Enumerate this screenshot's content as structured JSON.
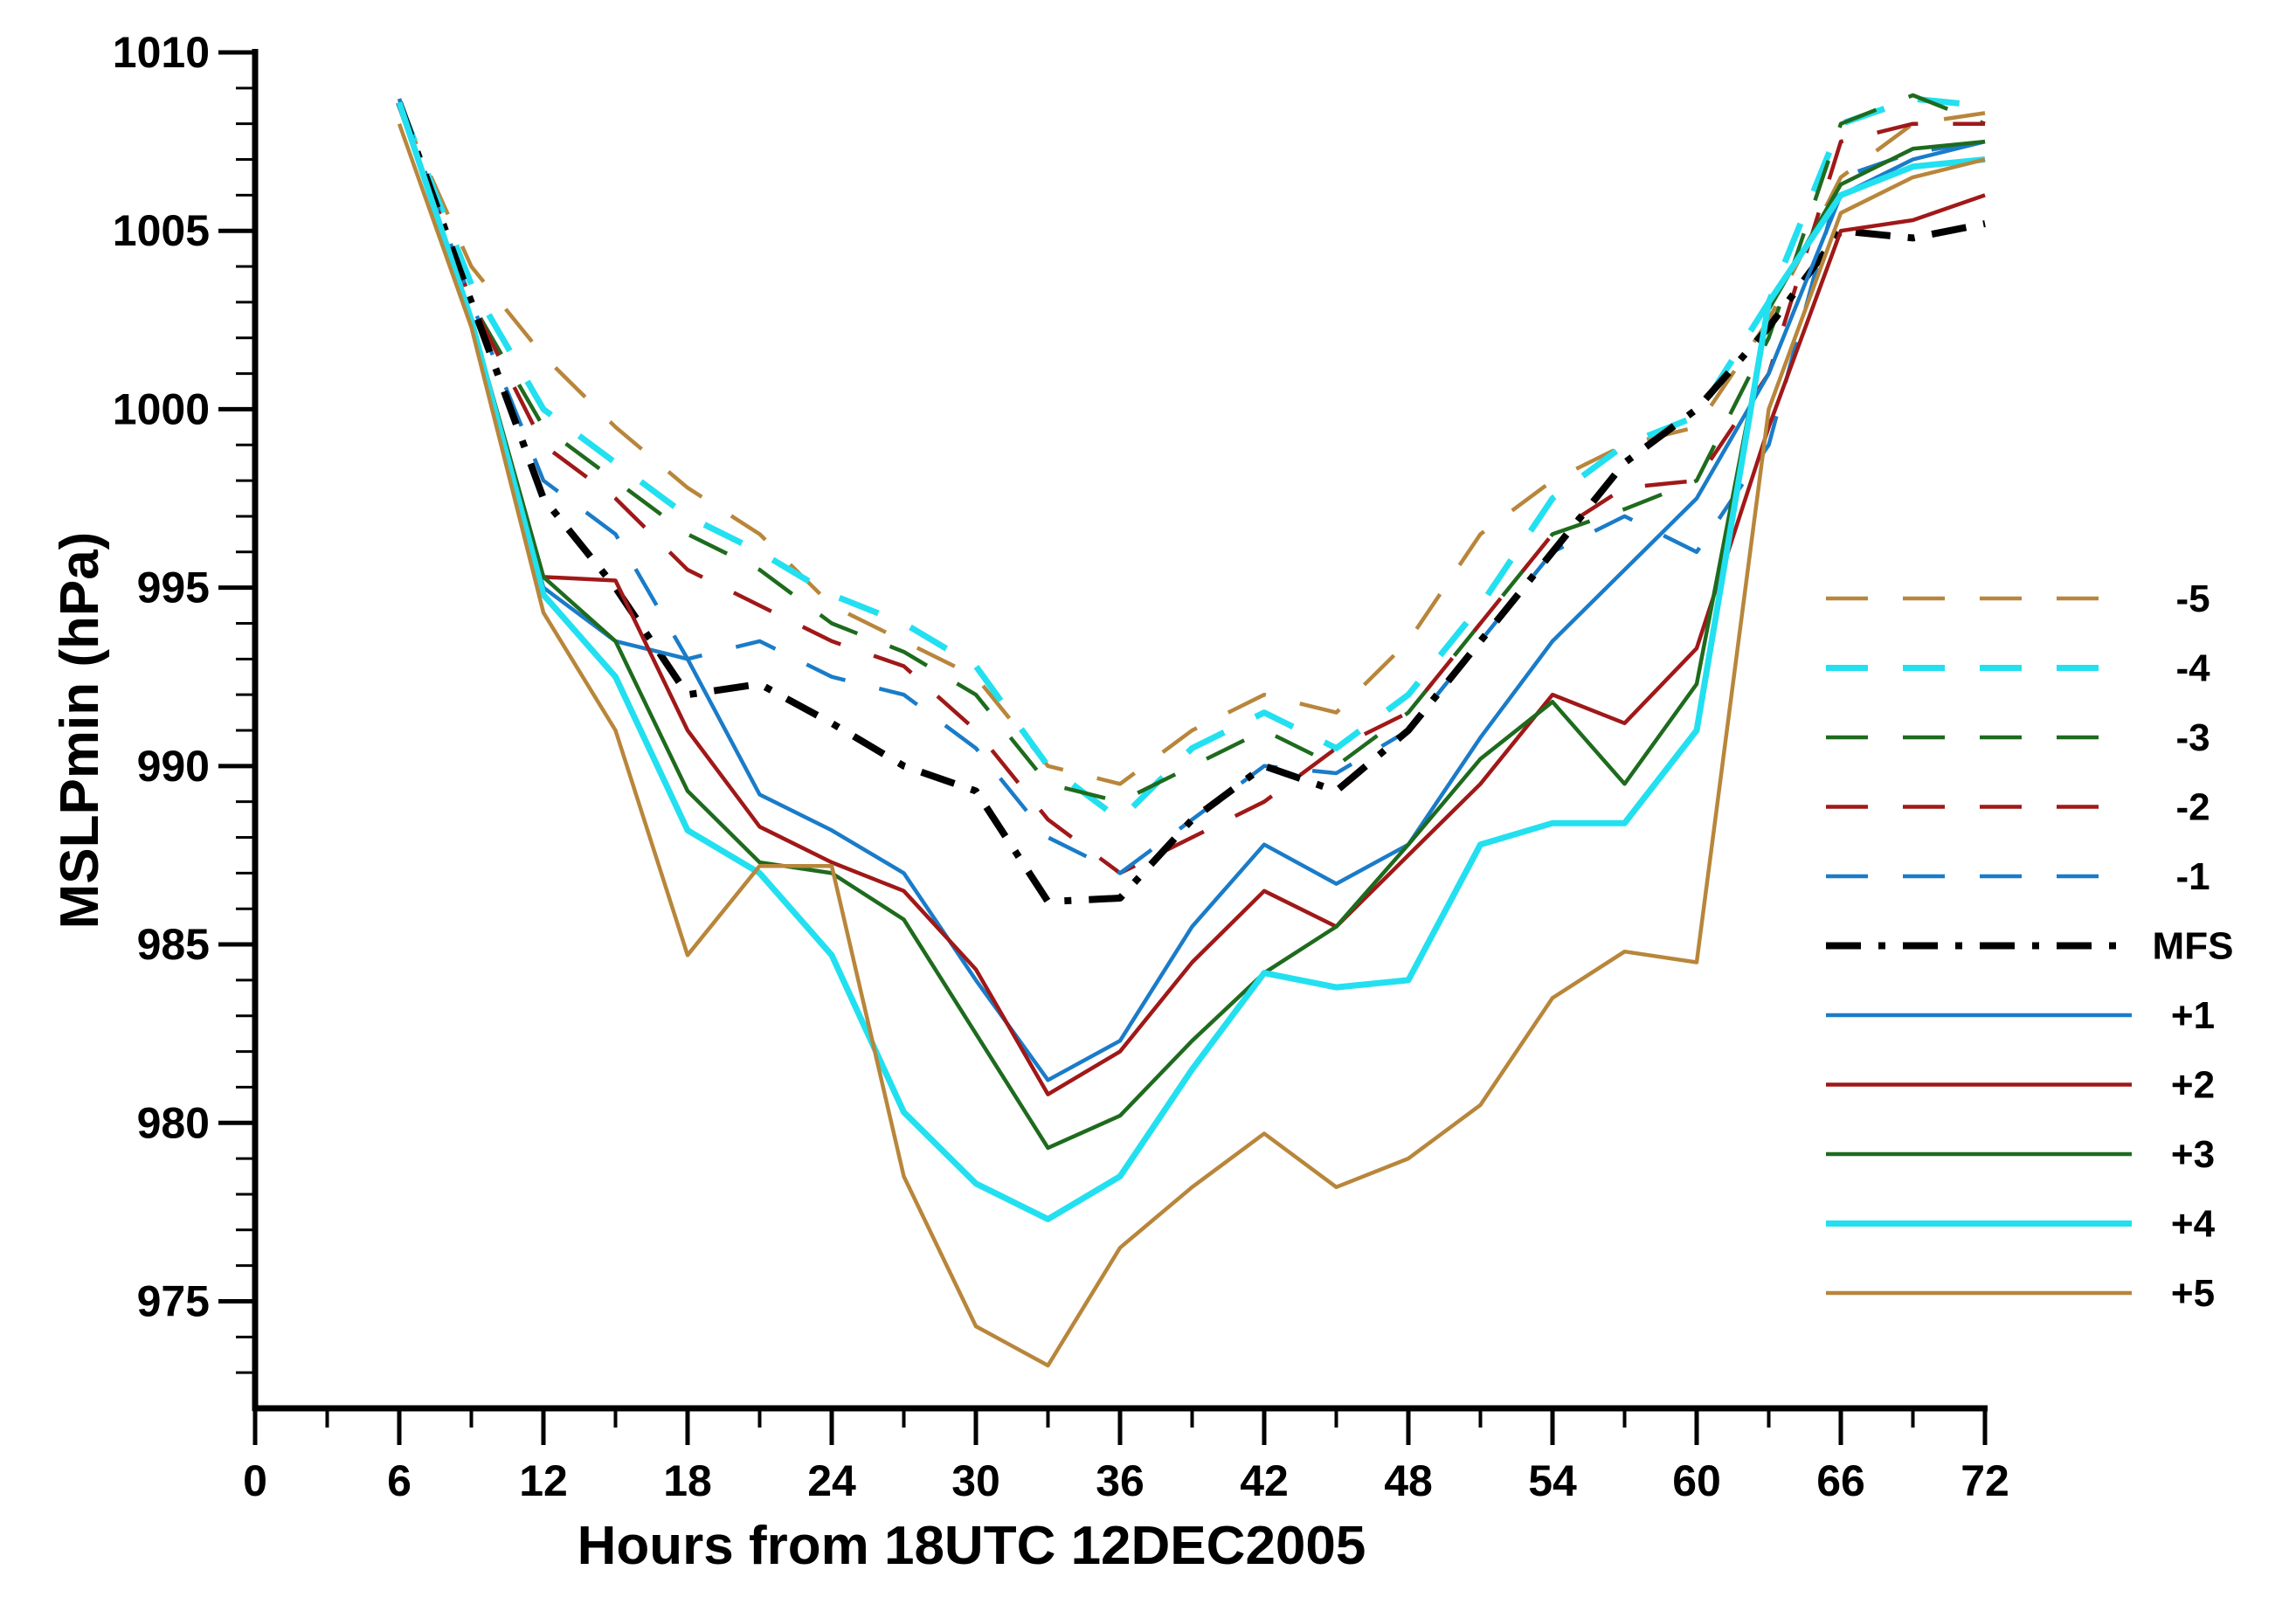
{
  "chart_data": {
    "type": "line",
    "title": "",
    "xlabel": "Hours from 18UTC 12DEC2005",
    "ylabel": "MSLPmin (hPa)",
    "xlim": [
      0,
      72
    ],
    "ylim": [
      972,
      1010
    ],
    "xticks": [
      0,
      6,
      12,
      18,
      24,
      30,
      36,
      42,
      48,
      54,
      60,
      66,
      72
    ],
    "yticks": [
      975,
      980,
      985,
      990,
      995,
      1000,
      1005,
      1010
    ],
    "xtick_labels": [
      "0",
      "6",
      "12",
      "18",
      "24",
      "30",
      "36",
      "42",
      "48",
      "54",
      "60",
      "66",
      "72"
    ],
    "ytick_labels": [
      "975",
      "980",
      "985",
      "990",
      "995",
      "1000",
      "1005",
      "1010"
    ],
    "grid": false,
    "legend_position": "right",
    "x": [
      6,
      9,
      12,
      15,
      18,
      21,
      24,
      27,
      30,
      33,
      36,
      39,
      42,
      45,
      48,
      51,
      54,
      57,
      60,
      63,
      66,
      69,
      72
    ],
    "series": [
      {
        "name": "-5",
        "color": "#b8863b",
        "style": "dashed",
        "values": [
          1008.5,
          1004,
          1001.5,
          999.5,
          997.8,
          996.5,
          994.5,
          993.5,
          992.5,
          990,
          989.5,
          991,
          992,
          991.5,
          993.5,
          996.5,
          998,
          999,
          999.5,
          1002.5,
          1006.5,
          1008,
          1008.3
        ]
      },
      {
        "name": "-4",
        "color": "#22e0f0",
        "style": "dashed",
        "values": [
          1008.6,
          1003.5,
          1000,
          998.5,
          997,
          996,
          994.8,
          994,
          992.8,
          990,
          988.5,
          990.5,
          991.5,
          990.5,
          992,
          994.5,
          997.5,
          999,
          999.8,
          1003,
          1008,
          1008.7,
          1008.5
        ]
      },
      {
        "name": "-3",
        "color": "#1e6b1e",
        "style": "dashed",
        "values": [
          1008.6,
          1003,
          999.5,
          998,
          996.5,
          995.5,
          994,
          993.2,
          992,
          989.5,
          989,
          990,
          991,
          990,
          991.5,
          994,
          996.5,
          997.2,
          998,
          1002,
          1008,
          1008.8,
          1008
        ]
      },
      {
        "name": "-2",
        "color": "#a01818",
        "style": "dashed",
        "values": [
          1008.6,
          1003,
          999,
          997.5,
          995.5,
          994.5,
          993.5,
          992.8,
          991,
          988.5,
          987,
          988,
          989,
          990.5,
          991.5,
          994,
          996.5,
          997.8,
          998,
          1001,
          1007.5,
          1008,
          1008
        ]
      },
      {
        "name": "-1",
        "color": "#1a7cc8",
        "style": "dashed",
        "values": [
          1008.7,
          1003,
          998,
          996.5,
          993,
          993.5,
          992.5,
          992,
          990.5,
          988,
          987,
          988.5,
          990,
          989.8,
          991,
          993.5,
          996,
          997,
          996,
          999,
          1006.5,
          1007.2,
          1007.5
        ]
      },
      {
        "name": "MFS",
        "color": "#000000",
        "style": "dashdot",
        "values": [
          1008.6,
          1003,
          997.5,
          995,
          992,
          992.3,
          991.2,
          990,
          989.3,
          986.2,
          986.3,
          988.5,
          990,
          989.3,
          991,
          993.5,
          996,
          998.5,
          1000,
          1002.3,
          1005,
          1004.8,
          1005.2
        ]
      },
      {
        "name": "+1",
        "color": "#1a7cc8",
        "style": "solid",
        "values": [
          1008.7,
          1002.5,
          995,
          993.5,
          993,
          989.2,
          988.2,
          987,
          984,
          981.2,
          982.3,
          985.5,
          987.8,
          986.7,
          987.8,
          990.8,
          993.5,
          995.5,
          997.5,
          1001,
          1006,
          1007,
          1007.5
        ]
      },
      {
        "name": "+2",
        "color": "#a01818",
        "style": "solid",
        "values": [
          1008.5,
          1002.5,
          995.3,
          995.2,
          991,
          988.3,
          987.3,
          986.5,
          984.3,
          980.8,
          982,
          984.5,
          986.5,
          985.5,
          987.5,
          989.5,
          992,
          991.2,
          993.3,
          999.5,
          1005,
          1005.3,
          1006
        ]
      },
      {
        "name": "+3",
        "color": "#1e6b1e",
        "style": "solid",
        "values": [
          1008.6,
          1002.5,
          995.3,
          993.5,
          989.3,
          987.3,
          987,
          985.7,
          982.5,
          979.3,
          980.2,
          982.3,
          984.2,
          985.5,
          987.8,
          990.2,
          991.8,
          989.5,
          992.3,
          1002.8,
          1006.3,
          1007.3,
          1007.5
        ]
      },
      {
        "name": "+4",
        "color": "#22e0f0",
        "style": "solid",
        "values": [
          1008.6,
          1002.5,
          994.8,
          992.5,
          988.2,
          987,
          984.7,
          980.3,
          978.3,
          977.3,
          978.5,
          981.5,
          984.2,
          983.8,
          984,
          987.8,
          988.4,
          988.4,
          991,
          1003,
          1006,
          1006.8,
          1007
        ]
      },
      {
        "name": "+5",
        "color": "#b8863b",
        "style": "solid",
        "values": [
          1008,
          1002.3,
          994.3,
          991,
          984.7,
          987.2,
          987.2,
          978.5,
          974.3,
          973.2,
          976.5,
          978.2,
          979.7,
          978.2,
          979,
          980.5,
          983.5,
          984.8,
          984.5,
          1000,
          1005.5,
          1006.5,
          1007
        ]
      }
    ]
  }
}
